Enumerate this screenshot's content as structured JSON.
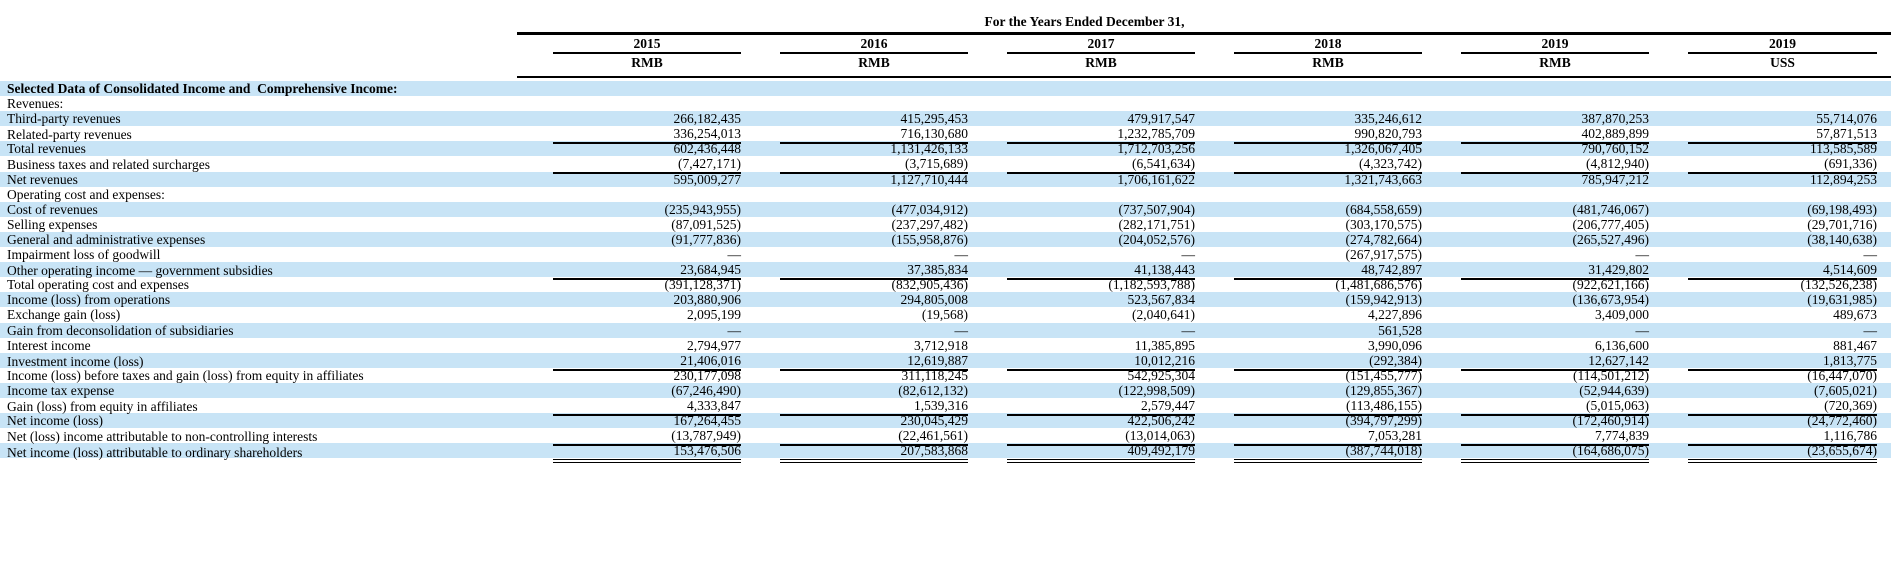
{
  "table": {
    "title": "For the Years Ended December 31,",
    "columns": [
      {
        "year": "2015",
        "currency": "RMB"
      },
      {
        "year": "2016",
        "currency": "RMB"
      },
      {
        "year": "2017",
        "currency": "RMB"
      },
      {
        "year": "2018",
        "currency": "RMB"
      },
      {
        "year": "2019",
        "currency": "RMB"
      },
      {
        "year": "2019",
        "currency": "USS"
      }
    ],
    "rows": [
      {
        "label": "Selected Data of Consolidated Income and  Comprehensive Income:",
        "bold": true,
        "values": null
      },
      {
        "label": "Revenues:",
        "values": null
      },
      {
        "label": "Third-party revenues",
        "values": [
          "266,182,435",
          "415,295,453",
          "479,917,547",
          "335,246,612",
          "387,870,253",
          "55,714,076"
        ]
      },
      {
        "label": "Related-party revenues",
        "rule": true,
        "values": [
          "336,254,013",
          "716,130,680",
          "1,232,785,709",
          "990,820,793",
          "402,889,899",
          "57,871,513"
        ]
      },
      {
        "label": "Total revenues",
        "values": [
          "602,436,448",
          "1,131,426,133",
          "1,712,703,256",
          "1,326,067,405",
          "790,760,152",
          "113,585,589"
        ]
      },
      {
        "label": "Business taxes and related surcharges",
        "rule": true,
        "values": [
          "(7,427,171)",
          "(3,715,689)",
          "(6,541,634)",
          "(4,323,742)",
          "(4,812,940)",
          "(691,336)"
        ]
      },
      {
        "label": "Net revenues",
        "values": [
          "595,009,277",
          "1,127,710,444",
          "1,706,161,622",
          "1,321,743,663",
          "785,947,212",
          "112,894,253"
        ]
      },
      {
        "label": "Operating cost and expenses:",
        "values": null
      },
      {
        "label": "Cost of revenues",
        "values": [
          "(235,943,955)",
          "(477,034,912)",
          "(737,507,904)",
          "(684,558,659)",
          "(481,746,067)",
          "(69,198,493)"
        ]
      },
      {
        "label": "Selling expenses",
        "values": [
          "(87,091,525)",
          "(237,297,482)",
          "(282,171,751)",
          "(303,170,575)",
          "(206,777,405)",
          "(29,701,716)"
        ]
      },
      {
        "label": "General and administrative expenses",
        "values": [
          "(91,777,836)",
          "(155,958,876)",
          "(204,052,576)",
          "(274,782,664)",
          "(265,527,496)",
          "(38,140,638)"
        ]
      },
      {
        "label": "Impairment loss of goodwill",
        "values": [
          "—",
          "—",
          "—",
          "(267,917,575)",
          "—",
          "—"
        ]
      },
      {
        "label": "Other operating income — government subsidies",
        "rule": true,
        "values": [
          "23,684,945",
          "37,385,834",
          "41,138,443",
          "48,742,897",
          "31,429,802",
          "4,514,609"
        ]
      },
      {
        "label": "Total operating cost and expenses",
        "values": [
          "(391,128,371)",
          "(832,905,436)",
          "(1,182,593,788)",
          "(1,481,686,576)",
          "(922,621,166)",
          "(132,526,238)"
        ]
      },
      {
        "label": "Income (loss) from operations",
        "values": [
          "203,880,906",
          "294,805,008",
          "523,567,834",
          "(159,942,913)",
          "(136,673,954)",
          "(19,631,985)"
        ]
      },
      {
        "label": "Exchange gain (loss)",
        "values": [
          "2,095,199",
          "(19,568)",
          "(2,040,641)",
          "4,227,896",
          "3,409,000",
          "489,673"
        ]
      },
      {
        "label": "Gain from deconsolidation of subsidiaries",
        "values": [
          "—",
          "—",
          "—",
          "561,528",
          "—",
          "—"
        ]
      },
      {
        "label": "Interest income",
        "values": [
          "2,794,977",
          "3,712,918",
          "11,385,895",
          "3,990,096",
          "6,136,600",
          "881,467"
        ]
      },
      {
        "label": "Investment income (loss)",
        "rule": true,
        "values": [
          "21,406,016",
          "12,619,887",
          "10,012,216",
          "(292,384)",
          "12,627,142",
          "1,813,775"
        ]
      },
      {
        "label": "Income (loss) before taxes and gain (loss) from equity in affiliates",
        "values": [
          "230,177,098",
          "311,118,245",
          "542,925,304",
          "(151,455,777)",
          "(114,501,212)",
          "(16,447,070)"
        ]
      },
      {
        "label": "Income tax expense",
        "values": [
          "(67,246,490)",
          "(82,612,132)",
          "(122,998,509)",
          "(129,855,367)",
          "(52,944,639)",
          "(7,605,021)"
        ]
      },
      {
        "label": "Gain (loss) from equity in affiliates",
        "rule": true,
        "values": [
          "4,333,847",
          "1,539,316",
          "2,579,447",
          "(113,486,155)",
          "(5,015,063)",
          "(720,369)"
        ]
      },
      {
        "label": "Net income (loss)",
        "values": [
          "167,264,455",
          "230,045,429",
          "422,506,242",
          "(394,797,299)",
          "(172,460,914)",
          "(24,772,460)"
        ]
      },
      {
        "label": "Net (loss) income attributable to non-controlling interests",
        "rule": true,
        "values": [
          "(13,787,949)",
          "(22,461,561)",
          "(13,014,063)",
          "7,053,281",
          "7,774,839",
          "1,116,786"
        ]
      },
      {
        "label": "Net income (loss) attributable to ordinary shareholders",
        "drule": true,
        "values": [
          "153,476,506",
          "207,583,868",
          "409,492,179",
          "(387,744,018)",
          "(164,686,075)",
          "(23,655,674)"
        ]
      }
    ]
  }
}
